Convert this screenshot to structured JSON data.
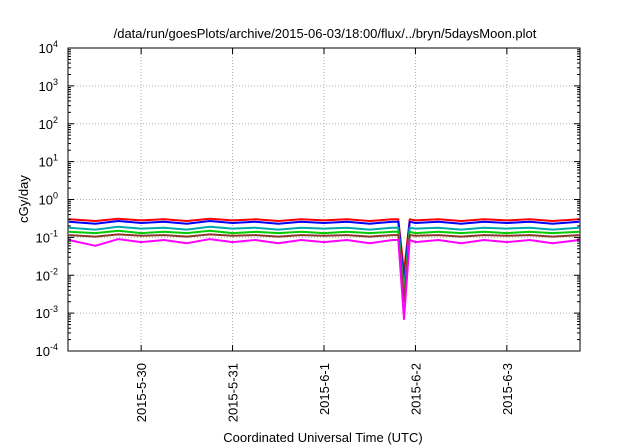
{
  "chart_data": {
    "type": "line",
    "title": "/data/run/goesPlots/archive/2015-06-03/18:00/flux/../bryn/5daysMoon.plot",
    "xlabel": "Coordinated Universal Time (UTC)",
    "ylabel": "cGy/day",
    "yscale": "log",
    "ylim": [
      0.0001,
      10000
    ],
    "xlim": [
      "2015-05-29T04:48",
      "2015-06-03T19:12"
    ],
    "grid": true,
    "y_ticks": [
      {
        "value": 0.0001,
        "mantissa": "10",
        "exponent": "-4"
      },
      {
        "value": 0.001,
        "mantissa": "10",
        "exponent": "-3"
      },
      {
        "value": 0.01,
        "mantissa": "10",
        "exponent": "-2"
      },
      {
        "value": 0.1,
        "mantissa": "10",
        "exponent": "-1"
      },
      {
        "value": 1,
        "mantissa": "10",
        "exponent": "0"
      },
      {
        "value": 10,
        "mantissa": "10",
        "exponent": "1"
      },
      {
        "value": 100,
        "mantissa": "10",
        "exponent": "2"
      },
      {
        "value": 1000,
        "mantissa": "10",
        "exponent": "3"
      },
      {
        "value": 10000,
        "mantissa": "10",
        "exponent": "4"
      }
    ],
    "x_ticks": [
      {
        "value": "2015-05-30",
        "label": "2015-5-30"
      },
      {
        "value": "2015-05-31",
        "label": "2015-5-31"
      },
      {
        "value": "2015-06-01",
        "label": "2015-6-1"
      },
      {
        "value": "2015-06-02",
        "label": "2015-6-2"
      },
      {
        "value": "2015-06-03",
        "label": "2015-6-3"
      }
    ],
    "series": [
      {
        "color": "#ff0000",
        "x": [
          "2015-05-29T05:00",
          "2015-05-29T12:00",
          "2015-05-29T18:00",
          "2015-05-30T00:00",
          "2015-05-30T06:00",
          "2015-05-30T12:00",
          "2015-05-30T18:00",
          "2015-05-31T00:00",
          "2015-05-31T06:00",
          "2015-05-31T12:00",
          "2015-05-31T18:00",
          "2015-06-01T00:00",
          "2015-06-01T06:00",
          "2015-06-01T12:00",
          "2015-06-01T18:00",
          "2015-06-01T19:30",
          "2015-06-01T21:00",
          "2015-06-01T22:30",
          "2015-06-02T00:00",
          "2015-06-02T06:00",
          "2015-06-02T12:00",
          "2015-06-02T18:00",
          "2015-06-03T00:00",
          "2015-06-03T06:00",
          "2015-06-03T12:00",
          "2015-06-03T19:00"
        ],
        "values": [
          0.3,
          0.27,
          0.31,
          0.28,
          0.3,
          0.27,
          0.31,
          0.28,
          0.3,
          0.27,
          0.3,
          0.28,
          0.3,
          0.27,
          0.3,
          0.3,
          0.012,
          0.3,
          0.28,
          0.3,
          0.27,
          0.3,
          0.28,
          0.3,
          0.27,
          0.3
        ]
      },
      {
        "color": "#0000ff",
        "x": [
          "2015-05-29T05:00",
          "2015-05-29T12:00",
          "2015-05-29T18:00",
          "2015-05-30T00:00",
          "2015-05-30T06:00",
          "2015-05-30T12:00",
          "2015-05-30T18:00",
          "2015-05-31T00:00",
          "2015-05-31T06:00",
          "2015-05-31T12:00",
          "2015-05-31T18:00",
          "2015-06-01T00:00",
          "2015-06-01T06:00",
          "2015-06-01T12:00",
          "2015-06-01T18:00",
          "2015-06-01T19:30",
          "2015-06-01T21:00",
          "2015-06-01T22:30",
          "2015-06-02T00:00",
          "2015-06-02T06:00",
          "2015-06-02T12:00",
          "2015-06-02T18:00",
          "2015-06-03T00:00",
          "2015-06-03T06:00",
          "2015-06-03T12:00",
          "2015-06-03T19:00"
        ],
        "values": [
          0.26,
          0.23,
          0.27,
          0.24,
          0.26,
          0.23,
          0.27,
          0.24,
          0.26,
          0.23,
          0.26,
          0.24,
          0.26,
          0.23,
          0.26,
          0.26,
          0.006,
          0.26,
          0.24,
          0.26,
          0.23,
          0.26,
          0.24,
          0.26,
          0.23,
          0.26
        ]
      },
      {
        "color": "#00aaaa",
        "x": [
          "2015-05-29T05:00",
          "2015-05-29T12:00",
          "2015-05-29T18:00",
          "2015-05-30T00:00",
          "2015-05-30T06:00",
          "2015-05-30T12:00",
          "2015-05-30T18:00",
          "2015-05-31T00:00",
          "2015-05-31T06:00",
          "2015-05-31T12:00",
          "2015-05-31T18:00",
          "2015-06-01T00:00",
          "2015-06-01T06:00",
          "2015-06-01T12:00",
          "2015-06-01T18:00",
          "2015-06-01T19:30",
          "2015-06-01T21:00",
          "2015-06-01T22:30",
          "2015-06-02T00:00",
          "2015-06-02T06:00",
          "2015-06-02T12:00",
          "2015-06-02T18:00",
          "2015-06-03T00:00",
          "2015-06-03T06:00",
          "2015-06-03T12:00",
          "2015-06-03T19:00"
        ],
        "values": [
          0.18,
          0.16,
          0.19,
          0.17,
          0.18,
          0.16,
          0.19,
          0.17,
          0.18,
          0.16,
          0.18,
          0.17,
          0.18,
          0.16,
          0.18,
          0.18,
          0.004,
          0.18,
          0.17,
          0.18,
          0.16,
          0.18,
          0.17,
          0.18,
          0.16,
          0.18
        ]
      },
      {
        "color": "#00cc00",
        "x": [
          "2015-05-29T05:00",
          "2015-05-29T12:00",
          "2015-05-29T18:00",
          "2015-05-30T00:00",
          "2015-05-30T06:00",
          "2015-05-30T12:00",
          "2015-05-30T18:00",
          "2015-05-31T00:00",
          "2015-05-31T06:00",
          "2015-05-31T12:00",
          "2015-05-31T18:00",
          "2015-06-01T00:00",
          "2015-06-01T06:00",
          "2015-06-01T12:00",
          "2015-06-01T18:00",
          "2015-06-01T19:30",
          "2015-06-01T21:00",
          "2015-06-01T22:30",
          "2015-06-02T00:00",
          "2015-06-02T06:00",
          "2015-06-02T12:00",
          "2015-06-02T18:00",
          "2015-06-03T00:00",
          "2015-06-03T06:00",
          "2015-06-03T12:00",
          "2015-06-03T19:00"
        ],
        "values": [
          0.14,
          0.13,
          0.15,
          0.13,
          0.14,
          0.13,
          0.15,
          0.13,
          0.14,
          0.13,
          0.14,
          0.13,
          0.14,
          0.13,
          0.14,
          0.14,
          0.003,
          0.14,
          0.13,
          0.14,
          0.13,
          0.14,
          0.13,
          0.14,
          0.13,
          0.14
        ]
      },
      {
        "color": "#8b3a2a",
        "x": [
          "2015-05-29T05:00",
          "2015-05-29T12:00",
          "2015-05-29T18:00",
          "2015-05-30T00:00",
          "2015-05-30T06:00",
          "2015-05-30T12:00",
          "2015-05-30T18:00",
          "2015-05-31T00:00",
          "2015-05-31T06:00",
          "2015-05-31T12:00",
          "2015-05-31T18:00",
          "2015-06-01T00:00",
          "2015-06-01T06:00",
          "2015-06-01T12:00",
          "2015-06-01T18:00",
          "2015-06-01T19:30",
          "2015-06-01T21:00",
          "2015-06-01T22:30",
          "2015-06-02T00:00",
          "2015-06-02T06:00",
          "2015-06-02T12:00",
          "2015-06-02T18:00",
          "2015-06-03T00:00",
          "2015-06-03T06:00",
          "2015-06-03T12:00",
          "2015-06-03T19:00"
        ],
        "values": [
          0.115,
          0.105,
          0.12,
          0.11,
          0.115,
          0.105,
          0.12,
          0.11,
          0.115,
          0.105,
          0.115,
          0.11,
          0.115,
          0.105,
          0.115,
          0.115,
          0.002,
          0.115,
          0.11,
          0.115,
          0.105,
          0.115,
          0.11,
          0.115,
          0.105,
          0.115
        ]
      },
      {
        "color": "#ff00ff",
        "x": [
          "2015-05-29T05:00",
          "2015-05-29T12:00",
          "2015-05-29T18:00",
          "2015-05-30T00:00",
          "2015-05-30T06:00",
          "2015-05-30T12:00",
          "2015-05-30T18:00",
          "2015-05-31T00:00",
          "2015-05-31T06:00",
          "2015-05-31T12:00",
          "2015-05-31T18:00",
          "2015-06-01T00:00",
          "2015-06-01T06:00",
          "2015-06-01T12:00",
          "2015-06-01T18:00",
          "2015-06-01T19:30",
          "2015-06-01T21:00",
          "2015-06-01T22:30",
          "2015-06-02T00:00",
          "2015-06-02T06:00",
          "2015-06-02T12:00",
          "2015-06-02T18:00",
          "2015-06-03T00:00",
          "2015-06-03T06:00",
          "2015-06-03T12:00",
          "2015-06-03T19:00"
        ],
        "values": [
          0.085,
          0.06,
          0.09,
          0.075,
          0.085,
          0.07,
          0.09,
          0.075,
          0.085,
          0.07,
          0.085,
          0.075,
          0.085,
          0.07,
          0.085,
          0.085,
          0.0007,
          0.085,
          0.075,
          0.085,
          0.07,
          0.085,
          0.075,
          0.085,
          0.07,
          0.085
        ]
      }
    ]
  }
}
